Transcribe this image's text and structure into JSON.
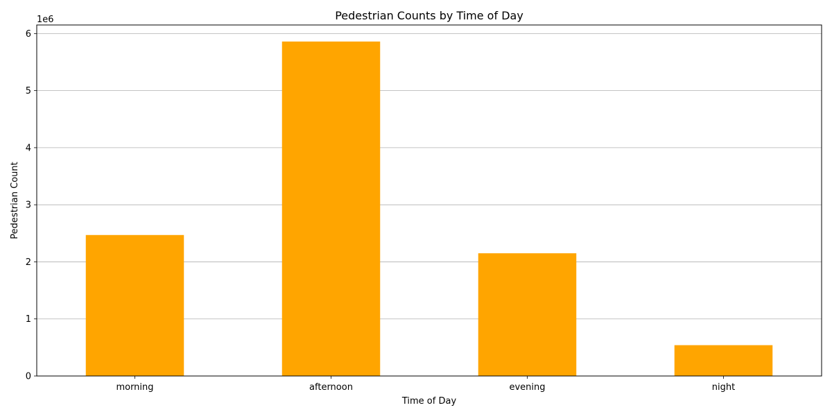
{
  "chart_data": {
    "type": "bar",
    "title": "Pedestrian Counts by Time of Day",
    "xlabel": "Time of Day",
    "ylabel": "Pedestrian Count",
    "y_offset_text": "1e6",
    "categories": [
      "morning",
      "afternoon",
      "evening",
      "night"
    ],
    "values": [
      2470000,
      5860000,
      2150000,
      540000
    ],
    "ylim": [
      0,
      6150000
    ],
    "yticks": [
      0,
      1000000,
      2000000,
      3000000,
      4000000,
      5000000,
      6000000
    ],
    "ytick_labels": [
      "0",
      "1",
      "2",
      "3",
      "4",
      "5",
      "6"
    ],
    "grid": "y-major",
    "legend": "none",
    "bar_color": "#ffa500"
  }
}
